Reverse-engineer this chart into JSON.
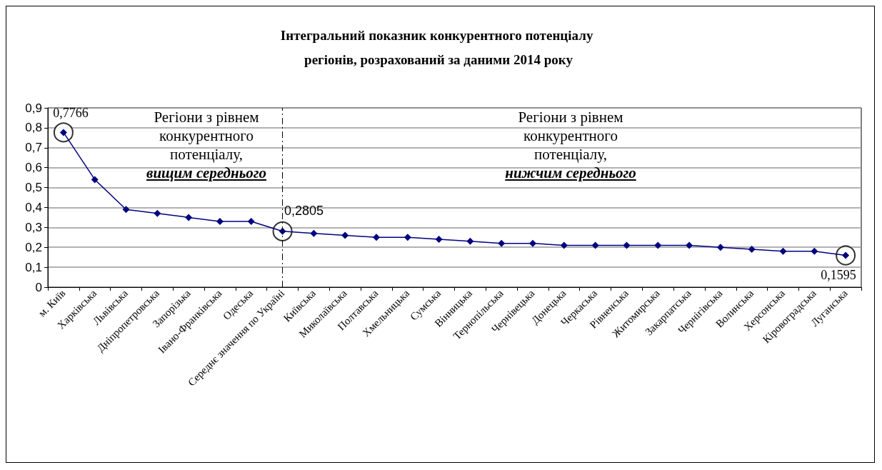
{
  "chart_data": {
    "type": "line",
    "title": "Інтегральний показник конкурентного потенціалу регіонів, розрахований за даними 2014 року",
    "categories": [
      "м. Київ",
      "Харківська",
      "Львівська",
      "Дніпропетровська",
      "Запорізька",
      "Івано-Франківська",
      "Одеська",
      "Середнє значення по Україні",
      "Київська",
      "Миколаївська",
      "Полтавська",
      "Хмельницька",
      "Сумська",
      "Вінницька",
      "Тернопільська",
      "Чернівецька",
      "Донецька",
      "Черкаська",
      "Рівненська",
      "Житомирська",
      "Закарпатська",
      "Чернігівська",
      "Волинська",
      "Херсонська",
      "Кіровоградська",
      "Луганська"
    ],
    "series": [
      {
        "color": "#000080",
        "values": [
          0.7766,
          0.54,
          0.39,
          0.37,
          0.35,
          0.33,
          0.33,
          0.2805,
          0.27,
          0.26,
          0.25,
          0.25,
          0.24,
          0.23,
          0.22,
          0.22,
          0.21,
          0.21,
          0.21,
          0.21,
          0.21,
          0.2,
          0.19,
          0.18,
          0.18,
          0.1595
        ],
        "value_labels": [
          "0,7766",
          null,
          null,
          null,
          null,
          null,
          null,
          "0,2805",
          null,
          null,
          null,
          null,
          null,
          null,
          null,
          null,
          null,
          null,
          null,
          null,
          null,
          null,
          null,
          null,
          null,
          "0,1595"
        ]
      }
    ],
    "ylim": [
      0,
      0.9
    ],
    "yticks": [
      0,
      {
        "value": 0.1,
        "label": "0,1"
      },
      {
        "value": 0.2,
        "label": "0,2"
      },
      {
        "value": 0.3,
        "label": "0,3"
      },
      {
        "value": 0.4,
        "label": "0,4"
      },
      {
        "value": 0.5,
        "label": "0,5"
      },
      {
        "value": 0.6,
        "label": "0,6"
      },
      {
        "value": 0.7,
        "label": "0,7"
      },
      {
        "value": 0.8,
        "label": "0,8"
      },
      {
        "value": 0.9,
        "label": "0,9"
      }
    ],
    "grid": "y",
    "marker": "diamond",
    "line_style": "solid",
    "ref_lines": [
      {
        "axis": "x",
        "value": "Середнє значення по Україні",
        "line_style": "dashed",
        "color": "#000000"
      }
    ],
    "annotations": [
      "Регіони з рівнем\nконкурентного\nпотенціалу,\nвищим середнього",
      "Регіони з рівнем\nконкурентного\nпотенціалу,\nнижчим середнього"
    ]
  }
}
